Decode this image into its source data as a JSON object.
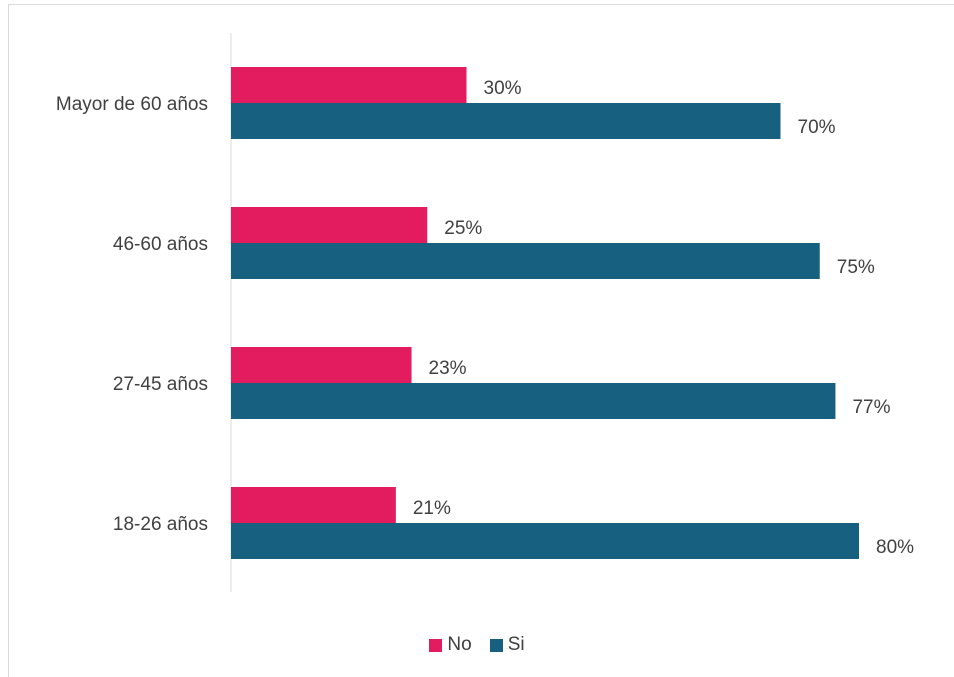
{
  "chart_data": {
    "type": "bar",
    "orientation": "horizontal",
    "categories": [
      "Mayor de 60 años",
      "46-60 años",
      "27-45 años",
      "18-26 años"
    ],
    "series": [
      {
        "name": "No",
        "color": "#e31c5f",
        "values": [
          30,
          25,
          23,
          21
        ],
        "labels": [
          "30%",
          "25%",
          "23%",
          "21%"
        ]
      },
      {
        "name": "Si",
        "color": "#17607f",
        "values": [
          70,
          75,
          77,
          80
        ],
        "labels": [
          "70%",
          "75%",
          "77%",
          "80%"
        ]
      }
    ],
    "xlim": [
      0,
      100
    ],
    "grid": false,
    "legend_position": "bottom"
  }
}
